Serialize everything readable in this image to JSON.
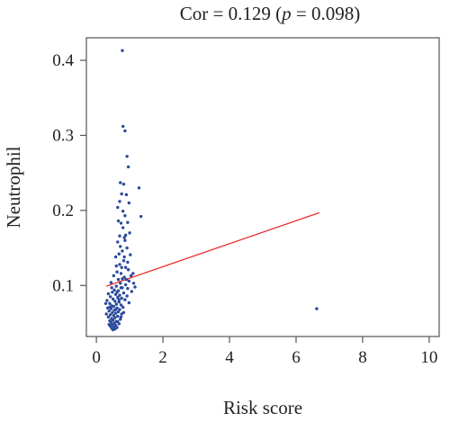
{
  "chart_data": {
    "type": "scatter",
    "title": {
      "prefix": "Cor = 0.129 (",
      "p_symbol": "p",
      "suffix": " = 0.098)"
    },
    "xlabel": "Risk score",
    "ylabel": "Neutrophil",
    "xlim": [
      -0.3,
      10.3
    ],
    "ylim": [
      0.032,
      0.43
    ],
    "x_ticks": [
      0,
      2,
      4,
      6,
      8,
      10
    ],
    "x_tick_labels": [
      "0",
      "2",
      "4",
      "6",
      "8",
      "10"
    ],
    "y_ticks": [
      0.1,
      0.2,
      0.3,
      0.4
    ],
    "y_tick_labels": [
      "0.1",
      "0.2",
      "0.3",
      "0.4"
    ],
    "grid": false,
    "point_color": "#2b4a9c",
    "line_color": "#e8302f",
    "fit_line": {
      "x": [
        0.3,
        6.7
      ],
      "y": [
        0.099,
        0.197
      ]
    },
    "points": [
      [
        0.78,
        0.413
      ],
      [
        0.8,
        0.312
      ],
      [
        0.86,
        0.306
      ],
      [
        0.92,
        0.272
      ],
      [
        0.96,
        0.258
      ],
      [
        0.72,
        0.237
      ],
      [
        0.82,
        0.235
      ],
      [
        1.28,
        0.23
      ],
      [
        0.76,
        0.222
      ],
      [
        0.9,
        0.221
      ],
      [
        0.7,
        0.212
      ],
      [
        0.98,
        0.21
      ],
      [
        0.64,
        0.204
      ],
      [
        0.86,
        0.193
      ],
      [
        1.34,
        0.192
      ],
      [
        0.66,
        0.186
      ],
      [
        0.74,
        0.183
      ],
      [
        0.94,
        0.184
      ],
      [
        0.8,
        0.177
      ],
      [
        1.0,
        0.17
      ],
      [
        0.7,
        0.166
      ],
      [
        0.86,
        0.16
      ],
      [
        0.64,
        0.158
      ],
      [
        0.92,
        0.15
      ],
      [
        0.78,
        0.146
      ],
      [
        1.02,
        0.141
      ],
      [
        0.58,
        0.138
      ],
      [
        0.82,
        0.133
      ],
      [
        0.7,
        0.128
      ],
      [
        0.88,
        0.124
      ],
      [
        0.96,
        0.121
      ],
      [
        0.62,
        0.118
      ],
      [
        0.74,
        0.116
      ],
      [
        1.1,
        0.116
      ],
      [
        0.52,
        0.113
      ],
      [
        0.84,
        0.111
      ],
      [
        0.66,
        0.108
      ],
      [
        0.98,
        0.106
      ],
      [
        0.44,
        0.104
      ],
      [
        0.72,
        0.103
      ],
      [
        0.88,
        0.101
      ],
      [
        0.6,
        0.099
      ],
      [
        1.16,
        0.098
      ],
      [
        0.78,
        0.097
      ],
      [
        0.94,
        0.096
      ],
      [
        0.54,
        0.094
      ],
      [
        0.66,
        0.093
      ],
      [
        1.06,
        0.092
      ],
      [
        0.48,
        0.091
      ],
      [
        0.82,
        0.09
      ],
      [
        0.36,
        0.089
      ],
      [
        0.58,
        0.088
      ],
      [
        0.7,
        0.087
      ],
      [
        0.92,
        0.086
      ],
      [
        0.42,
        0.085
      ],
      [
        0.64,
        0.084
      ],
      [
        0.76,
        0.083
      ],
      [
        0.5,
        0.082
      ],
      [
        0.86,
        0.081
      ],
      [
        0.32,
        0.08
      ],
      [
        0.56,
        0.079
      ],
      [
        0.68,
        0.078
      ],
      [
        0.98,
        0.077
      ],
      [
        0.4,
        0.076
      ],
      [
        0.6,
        0.075
      ],
      [
        0.74,
        0.074
      ],
      [
        0.46,
        0.073
      ],
      [
        0.52,
        0.072
      ],
      [
        0.8,
        0.071
      ],
      [
        0.34,
        0.07
      ],
      [
        0.62,
        0.07
      ],
      [
        0.44,
        0.069
      ],
      [
        0.7,
        0.068
      ],
      [
        0.54,
        0.067
      ],
      [
        0.38,
        0.066
      ],
      [
        0.66,
        0.065
      ],
      [
        0.48,
        0.064
      ],
      [
        0.58,
        0.063
      ],
      [
        0.76,
        0.062
      ],
      [
        0.42,
        0.061
      ],
      [
        0.52,
        0.06
      ],
      [
        0.64,
        0.059
      ],
      [
        0.36,
        0.058
      ],
      [
        0.56,
        0.057
      ],
      [
        0.46,
        0.056
      ],
      [
        0.72,
        0.055
      ],
      [
        0.5,
        0.054
      ],
      [
        0.4,
        0.053
      ],
      [
        0.6,
        0.052
      ],
      [
        0.44,
        0.051
      ],
      [
        0.54,
        0.05
      ],
      [
        0.68,
        0.049
      ],
      [
        0.48,
        0.048
      ],
      [
        0.58,
        0.047
      ],
      [
        0.42,
        0.046
      ],
      [
        0.52,
        0.045
      ],
      [
        0.62,
        0.044
      ],
      [
        0.46,
        0.043
      ],
      [
        0.56,
        0.042
      ],
      [
        0.5,
        0.041
      ],
      [
        0.38,
        0.048
      ],
      [
        0.3,
        0.062
      ],
      [
        0.28,
        0.076
      ],
      [
        0.62,
        0.091
      ],
      [
        0.74,
        0.097
      ],
      [
        0.9,
        0.108
      ],
      [
        1.04,
        0.113
      ],
      [
        0.76,
        0.124
      ],
      [
        0.84,
        0.138
      ],
      [
        0.72,
        0.152
      ],
      [
        0.88,
        0.167
      ],
      [
        0.8,
        0.199
      ],
      [
        0.84,
        0.164
      ],
      [
        0.68,
        0.142
      ],
      [
        0.94,
        0.131
      ],
      [
        0.6,
        0.126
      ],
      [
        0.78,
        0.109
      ],
      [
        0.46,
        0.097
      ],
      [
        0.68,
        0.081
      ],
      [
        0.58,
        0.068
      ],
      [
        0.82,
        0.064
      ],
      [
        0.64,
        0.052
      ],
      [
        0.74,
        0.058
      ],
      [
        0.4,
        0.071
      ],
      [
        1.12,
        0.103
      ],
      [
        6.62,
        0.069
      ]
    ]
  }
}
